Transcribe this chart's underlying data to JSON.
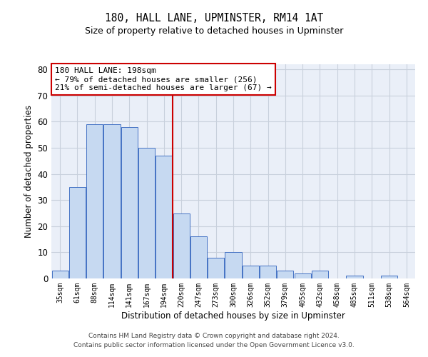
{
  "title": "180, HALL LANE, UPMINSTER, RM14 1AT",
  "subtitle": "Size of property relative to detached houses in Upminster",
  "xlabel": "Distribution of detached houses by size in Upminster",
  "ylabel": "Number of detached properties",
  "categories": [
    "35sqm",
    "61sqm",
    "88sqm",
    "114sqm",
    "141sqm",
    "167sqm",
    "194sqm",
    "220sqm",
    "247sqm",
    "273sqm",
    "300sqm",
    "326sqm",
    "352sqm",
    "379sqm",
    "405sqm",
    "432sqm",
    "458sqm",
    "485sqm",
    "511sqm",
    "538sqm",
    "564sqm"
  ],
  "values": [
    3,
    35,
    59,
    59,
    58,
    50,
    47,
    25,
    16,
    8,
    10,
    5,
    5,
    3,
    2,
    3,
    0,
    1,
    0,
    1,
    0
  ],
  "bar_color": "#c6d9f1",
  "bar_edge_color": "#4472c4",
  "annotation_line1": "180 HALL LANE: 198sqm",
  "annotation_line2": "← 79% of detached houses are smaller (256)",
  "annotation_line3": "21% of semi-detached houses are larger (67) →",
  "annotation_box_color": "#ffffff",
  "annotation_box_edge_color": "#cc0000",
  "vline_color": "#cc0000",
  "vline_x_index": 6,
  "ylim": [
    0,
    82
  ],
  "yticks": [
    0,
    10,
    20,
    30,
    40,
    50,
    60,
    70,
    80
  ],
  "grid_color": "#c8d0dc",
  "background_color": "#eaeff8",
  "footer_line1": "Contains HM Land Registry data © Crown copyright and database right 2024.",
  "footer_line2": "Contains public sector information licensed under the Open Government Licence v3.0."
}
